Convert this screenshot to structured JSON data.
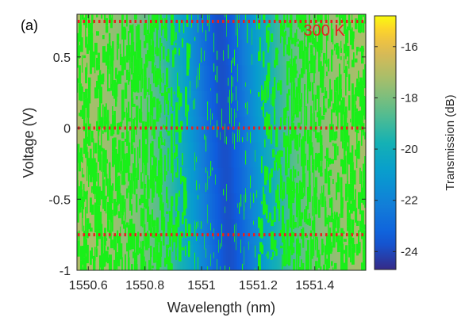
{
  "panel_label": "(a)",
  "chart_data": {
    "type": "heatmap",
    "title": "",
    "xlabel": "Wavelength (nm)",
    "ylabel": "Voltage (V)",
    "xlim": [
      1550.56,
      1551.58
    ],
    "ylim": [
      -1.0,
      0.8
    ],
    "xticks": [
      1550.6,
      1550.8,
      1551,
      1551.2,
      1551.4
    ],
    "xtick_labels": [
      "1550.6",
      "1550.8",
      "1551",
      "1551.2",
      "1551.4"
    ],
    "yticks": [
      -1,
      -0.5,
      0,
      0.5
    ],
    "ytick_labels": [
      "-1",
      "-0.5",
      "0",
      "0.5"
    ],
    "colorbar": {
      "label": "Transmission (dB)",
      "range": [
        -24.7,
        -14.8
      ],
      "ticks": [
        -24,
        -22,
        -20,
        -18,
        -16
      ],
      "tick_labels": [
        "-24",
        "-22",
        "-20",
        "-18",
        "-16"
      ],
      "colormap": "parula"
    },
    "resonance": {
      "center_wavelength_nm": 1551.08,
      "min_transmission_db": -23.8,
      "baseline_transmission_db": -16.6,
      "fwhm_nm": 0.3
    },
    "reference_lines": {
      "voltages": [
        0.75,
        0.0,
        -0.75
      ],
      "color": "#e8201f",
      "style": "dotted"
    },
    "annotation": {
      "text": "300 K",
      "x": 1551.36,
      "y": 0.65,
      "color": "#e8201f"
    },
    "noise_color": "#19ef19",
    "grid": false
  }
}
